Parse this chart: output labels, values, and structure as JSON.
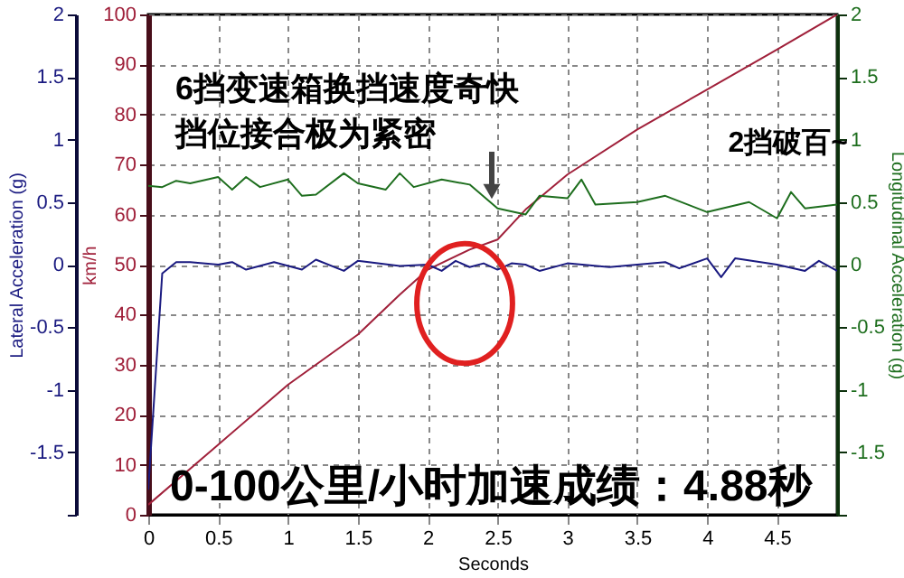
{
  "chart_data": {
    "type": "line",
    "xlabel": "Seconds",
    "ylabel": "km/h",
    "y2label": "Longitudinal Acceleration (g)",
    "y3label": "Lateral Acceleration (g)",
    "xlim": [
      0,
      4.93
    ],
    "xticks": [
      0,
      0.5,
      1,
      1.5,
      2,
      2.5,
      3,
      3.5,
      4,
      4.5
    ],
    "ylim": [
      0,
      100
    ],
    "yticks": [
      0,
      10,
      20,
      30,
      40,
      50,
      60,
      70,
      80,
      90,
      100
    ],
    "y2lim": [
      -2,
      2
    ],
    "y2ticks": [
      {
        "value": -2,
        "label": null
      },
      -1.5,
      -1,
      -0.5,
      0,
      0.5,
      1,
      1.5,
      2
    ],
    "y3lim": [
      -2,
      2
    ],
    "y3ticks": [
      {
        "value": -2,
        "label": null
      },
      -1.5,
      -1,
      -0.5,
      0,
      0.5,
      1,
      1.5,
      2
    ],
    "grid": true,
    "line_style": "solid",
    "series": [
      {
        "color": "#a0203a",
        "axis": "y",
        "x": [
          0,
          0.5,
          1,
          1.5,
          1.8,
          2,
          2.3,
          2.5,
          2.7,
          3,
          3.5,
          4,
          4.5,
          4.93
        ],
        "values": [
          2,
          14,
          26,
          36,
          44,
          49,
          53,
          55,
          61,
          68,
          77,
          85,
          93,
          100
        ]
      },
      {
        "color": "#1a1a80",
        "axis": "y3",
        "x": [
          0,
          0.1,
          0.2,
          0.3,
          0.5,
          0.6,
          0.7,
          0.9,
          1.1,
          1.2,
          1.4,
          1.5,
          1.8,
          2.0,
          2.1,
          2.2,
          2.3,
          2.4,
          2.5,
          2.6,
          2.7,
          2.8,
          3.0,
          3.3,
          3.5,
          3.7,
          3.8,
          4.0,
          4.1,
          4.2,
          4.5,
          4.7,
          4.8,
          4.93
        ],
        "values": [
          -1.8,
          -0.07,
          0.02,
          0.02,
          0.0,
          0.02,
          -0.04,
          0.02,
          -0.04,
          0.04,
          -0.05,
          0.03,
          -0.01,
          0.0,
          -0.05,
          0.03,
          -0.02,
          0.01,
          -0.04,
          0.01,
          0.0,
          -0.05,
          0.01,
          -0.02,
          0.0,
          0.02,
          -0.03,
          0.05,
          -0.1,
          0.05,
          0.0,
          -0.05,
          0.03,
          -0.05
        ]
      },
      {
        "color": "#1e6e1e",
        "axis": "y2",
        "x": [
          0,
          0.1,
          0.2,
          0.3,
          0.5,
          0.6,
          0.7,
          0.8,
          1.0,
          1.1,
          1.2,
          1.4,
          1.5,
          1.7,
          1.8,
          1.9,
          2.1,
          2.3,
          2.5,
          2.7,
          2.8,
          3.0,
          3.1,
          3.2,
          3.5,
          3.7,
          4.0,
          4.3,
          4.5,
          4.6,
          4.7,
          4.93
        ],
        "values": [
          0.63,
          0.62,
          0.67,
          0.65,
          0.7,
          0.6,
          0.7,
          0.62,
          0.68,
          0.55,
          0.56,
          0.73,
          0.65,
          0.6,
          0.73,
          0.62,
          0.68,
          0.64,
          0.45,
          0.4,
          0.55,
          0.53,
          0.68,
          0.48,
          0.5,
          0.55,
          0.42,
          0.5,
          0.37,
          0.58,
          0.45,
          0.48
        ]
      }
    ],
    "annotations": [
      "6挡变速箱换挡速度奇快",
      "挡位接合极为紧密",
      "2挡破百~",
      "0-100公里/小时加速成绩：4.88秒"
    ]
  }
}
